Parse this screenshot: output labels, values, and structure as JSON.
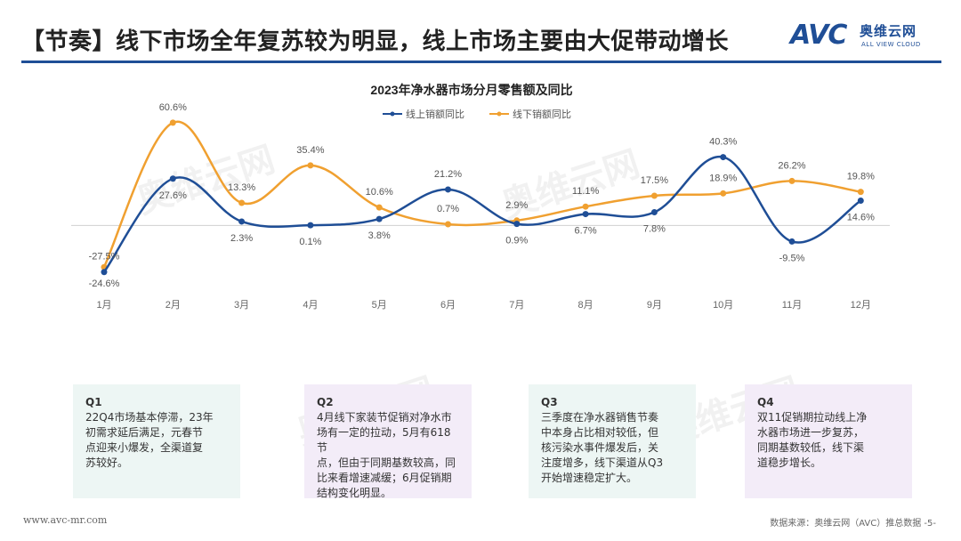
{
  "page": {
    "title": "【节奏】线下市场全年复苏较为明显，线上市场主要由大促带动增长",
    "logo": {
      "mark": "AVC",
      "cn": "奥维云网",
      "en": "ALL VIEW CLOUD"
    },
    "watermark": "奥维云网",
    "footer_url": "www.avc-mr.com",
    "footer_source": "数据来源：奥维云网（AVC）推总数据  -5-"
  },
  "notes": [
    {
      "head": "Q1",
      "lines": [
        "22Q4市场基本停滞，23年",
        "初需求延后满足，元春节",
        "点迎来小爆发，全渠道复",
        "苏较好。"
      ]
    },
    {
      "head": "Q2",
      "lines": [
        "4月线下家装节促销对净水市",
        "场有一定的拉动，5月有618节",
        "点，但由于同期基数较高，同",
        "比来看增速减缓；6月促销期",
        "结构变化明显。"
      ]
    },
    {
      "head": "Q3",
      "lines": [
        "三季度在净水器销售节奏",
        "中本身占比相对较低，但",
        "核污染水事件爆发后，关",
        "注度增多，线下渠道从Q3",
        "开始增速稳定扩大。"
      ]
    },
    {
      "head": "Q4",
      "lines": [
        "双11促销期拉动线上净",
        "水器市场进一步复苏，",
        "同期基数较低，线下渠",
        "道稳步增长。"
      ]
    }
  ],
  "chart_data": {
    "type": "line",
    "title": "2023年净水器市场分月零售额及同比",
    "categories": [
      "1月",
      "2月",
      "3月",
      "4月",
      "5月",
      "6月",
      "7月",
      "8月",
      "9月",
      "10月",
      "11月",
      "12月"
    ],
    "series": [
      {
        "name": "线上销额同比",
        "color": "#1f4e96",
        "values": [
          -27.5,
          27.6,
          2.3,
          0.1,
          3.8,
          21.2,
          0.9,
          6.7,
          7.8,
          40.3,
          -9.5,
          14.6
        ],
        "labels": [
          "-27.5%",
          "27.6%",
          "2.3%",
          "0.1%",
          "3.8%",
          "21.2%",
          "0.9%",
          "6.7%",
          "7.8%",
          "40.3%",
          "-9.5%",
          "14.6%"
        ],
        "label_pos": [
          "above",
          "below",
          "below",
          "below",
          "below",
          "above",
          "below",
          "below",
          "below",
          "above",
          "below",
          "below"
        ]
      },
      {
        "name": "线下销额同比",
        "color": "#f0a030",
        "values": [
          -24.6,
          60.6,
          13.3,
          35.4,
          10.6,
          0.7,
          2.9,
          11.1,
          17.5,
          18.9,
          26.2,
          19.8
        ],
        "labels": [
          "-24.6%",
          "60.6%",
          "13.3%",
          "35.4%",
          "10.6%",
          "0.7%",
          "2.9%",
          "11.1%",
          "17.5%",
          "18.9%",
          "26.2%",
          "19.8%"
        ],
        "label_pos": [
          "below",
          "above",
          "above",
          "above",
          "above",
          "above",
          "above",
          "above",
          "above",
          "above",
          "above",
          "above"
        ]
      }
    ],
    "ylim": [
      -35,
      70
    ],
    "grid": false,
    "legend": "top"
  }
}
